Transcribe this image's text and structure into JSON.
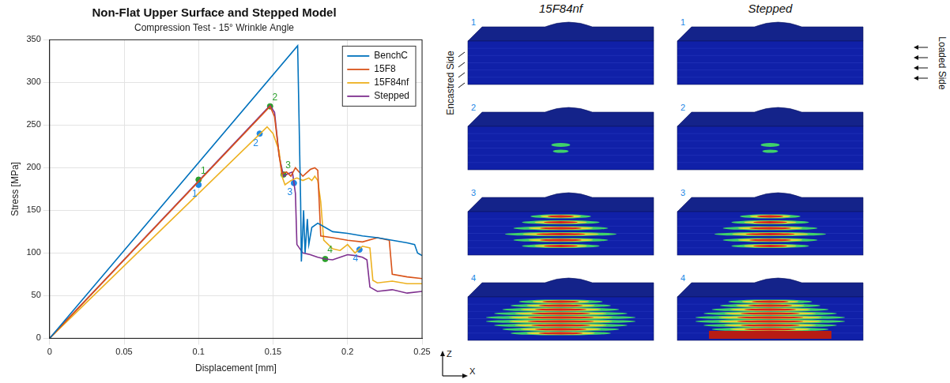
{
  "chart_data": {
    "type": "line",
    "title": "Non-Flat Upper Surface and Stepped Model",
    "subtitle": "Compression Test - 15° Wrinkle Angle",
    "x_label": "Displacement [mm]",
    "y_label": "Stress [MPa]",
    "xlim": [
      0,
      0.25
    ],
    "xticks": [
      0,
      0.05,
      0.1,
      0.15,
      0.2,
      0.25
    ],
    "ylim": [
      0,
      350
    ],
    "yticks": [
      0,
      50,
      100,
      150,
      200,
      250,
      300,
      350
    ],
    "grid": true,
    "legend": "upper right",
    "series": [
      {
        "name": "BenchC",
        "color": "#0072BD",
        "x": [
          0,
          0.1665,
          0.1685,
          0.169,
          0.1705,
          0.1715,
          0.173,
          0.174,
          0.176,
          0.18,
          0.185,
          0.19,
          0.2,
          0.21,
          0.22,
          0.23,
          0.24,
          0.245,
          0.247,
          0.25
        ],
        "values": [
          0,
          343,
          160,
          90,
          150,
          100,
          140,
          110,
          130,
          135,
          130,
          125,
          123,
          120,
          118,
          115,
          112,
          110,
          100,
          97
        ]
      },
      {
        "name": "15F8",
        "color": "#D95319",
        "x": [
          0,
          0.148,
          0.151,
          0.154,
          0.156,
          0.159,
          0.162,
          0.165,
          0.17,
          0.175,
          0.178,
          0.18,
          0.182,
          0.19,
          0.2,
          0.21,
          0.22,
          0.228,
          0.23,
          0.24,
          0.25
        ],
        "values": [
          0,
          272,
          260,
          215,
          193,
          195,
          190,
          200,
          190,
          198,
          200,
          197,
          120,
          118,
          115,
          113,
          118,
          115,
          75,
          72,
          70
        ]
      },
      {
        "name": "15F84nf",
        "color": "#EDB120",
        "x": [
          0,
          0.146,
          0.15,
          0.154,
          0.156,
          0.158,
          0.162,
          0.166,
          0.17,
          0.174,
          0.176,
          0.178,
          0.18,
          0.182,
          0.184,
          0.19,
          0.195,
          0.2,
          0.205,
          0.21,
          0.215,
          0.217,
          0.22,
          0.23,
          0.24,
          0.25
        ],
        "values": [
          0,
          248,
          240,
          220,
          190,
          180,
          185,
          188,
          185,
          188,
          185,
          190,
          185,
          160,
          115,
          105,
          103,
          110,
          100,
          108,
          106,
          68,
          65,
          67,
          64,
          64
        ]
      },
      {
        "name": "Stepped",
        "color": "#7E2F8E",
        "x": [
          0,
          0.148,
          0.151,
          0.154,
          0.157,
          0.16,
          0.163,
          0.165,
          0.166,
          0.17,
          0.175,
          0.18,
          0.185,
          0.19,
          0.195,
          0.2,
          0.205,
          0.21,
          0.213,
          0.215,
          0.22,
          0.23,
          0.24,
          0.25
        ],
        "values": [
          0,
          273,
          265,
          215,
          190,
          193,
          195,
          170,
          110,
          100,
          98,
          95,
          93,
          92,
          95,
          98,
          97,
          95,
          92,
          60,
          55,
          57,
          53,
          55
        ]
      }
    ],
    "annotations": [
      {
        "series": "Stepped",
        "color": "#2ca02c",
        "points": [
          {
            "x": 0.1,
            "y": 186,
            "label": "1"
          },
          {
            "x": 0.148,
            "y": 272,
            "label": "2"
          },
          {
            "x": 0.157,
            "y": 192,
            "label": "3"
          },
          {
            "x": 0.185,
            "y": 93,
            "label": "4"
          }
        ]
      },
      {
        "series": "15F84nf",
        "color": "#1e88e5",
        "points": [
          {
            "x": 0.1,
            "y": 180,
            "label": "1"
          },
          {
            "x": 0.141,
            "y": 240,
            "label": "2"
          },
          {
            "x": 0.164,
            "y": 182,
            "label": "3"
          },
          {
            "x": 0.208,
            "y": 104,
            "label": "4"
          }
        ]
      }
    ]
  },
  "figure": {
    "columns": [
      "15F84nf",
      "Stepped"
    ],
    "row_labels": [
      "1",
      "2",
      "3",
      "4"
    ],
    "left_side_label": "Encastred Side",
    "right_side_label": "Loaded Side",
    "axis_labels": {
      "vertical": "Z",
      "horizontal": "X"
    }
  }
}
